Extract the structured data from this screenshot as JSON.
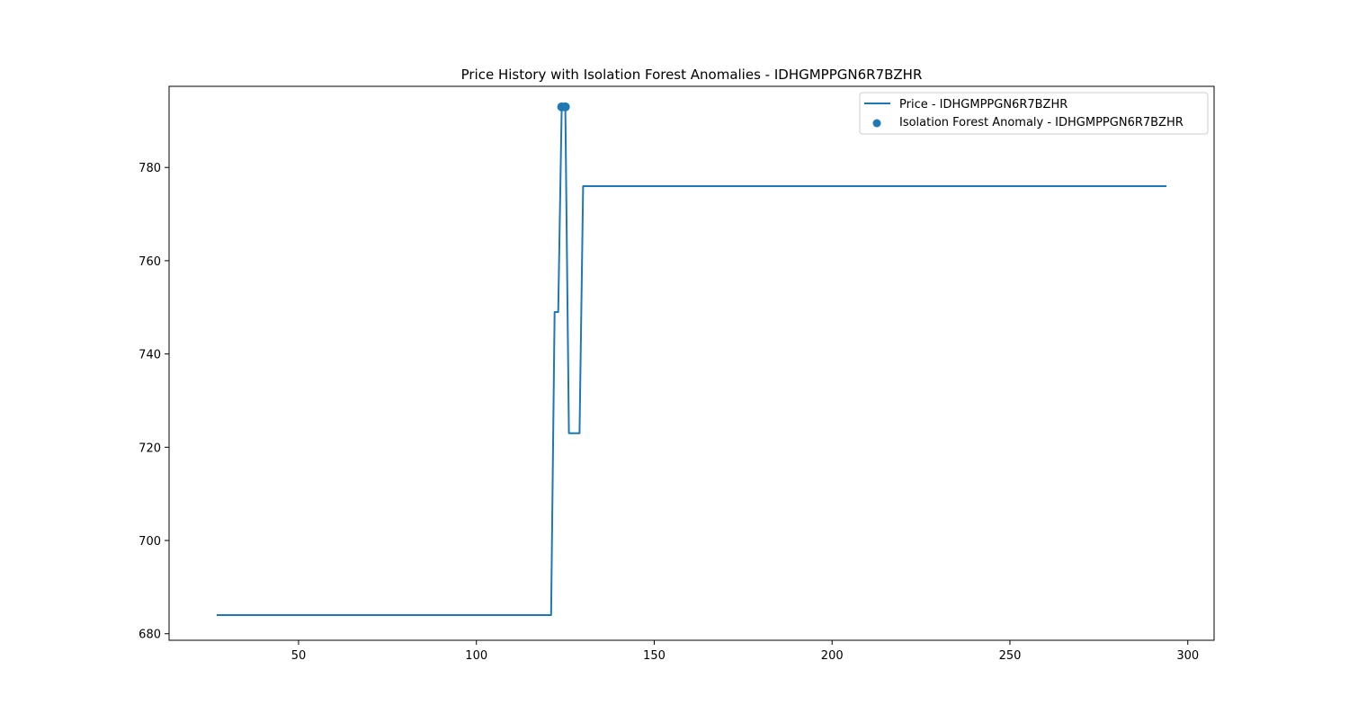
{
  "chart_data": {
    "type": "line",
    "title": "Price History with Isolation Forest Anomalies - IDHGMPPGN6R7BZHR",
    "xlabel": "",
    "ylabel": "",
    "xlim": [
      13.6,
      307.4
    ],
    "ylim": [
      678.6,
      797.4
    ],
    "xticks": [
      50,
      100,
      150,
      200,
      250,
      300
    ],
    "yticks": [
      680,
      700,
      720,
      740,
      760,
      780
    ],
    "grid": false,
    "legend_position": "top-right",
    "series": [
      {
        "name": "Price - IDHGMPPGN6R7BZHR",
        "kind": "line",
        "color": "#1f77b4",
        "points": [
          [
            27,
            684
          ],
          [
            121,
            684
          ],
          [
            122,
            749
          ],
          [
            123,
            749
          ],
          [
            124,
            793
          ],
          [
            125,
            793
          ],
          [
            126,
            723
          ],
          [
            129,
            723
          ],
          [
            130,
            776
          ],
          [
            294,
            776
          ]
        ]
      },
      {
        "name": "Isolation Forest Anomaly - IDHGMPPGN6R7BZHR",
        "kind": "scatter",
        "color": "#1f77b4",
        "points": [
          [
            124,
            793
          ],
          [
            125,
            793
          ]
        ]
      }
    ]
  }
}
